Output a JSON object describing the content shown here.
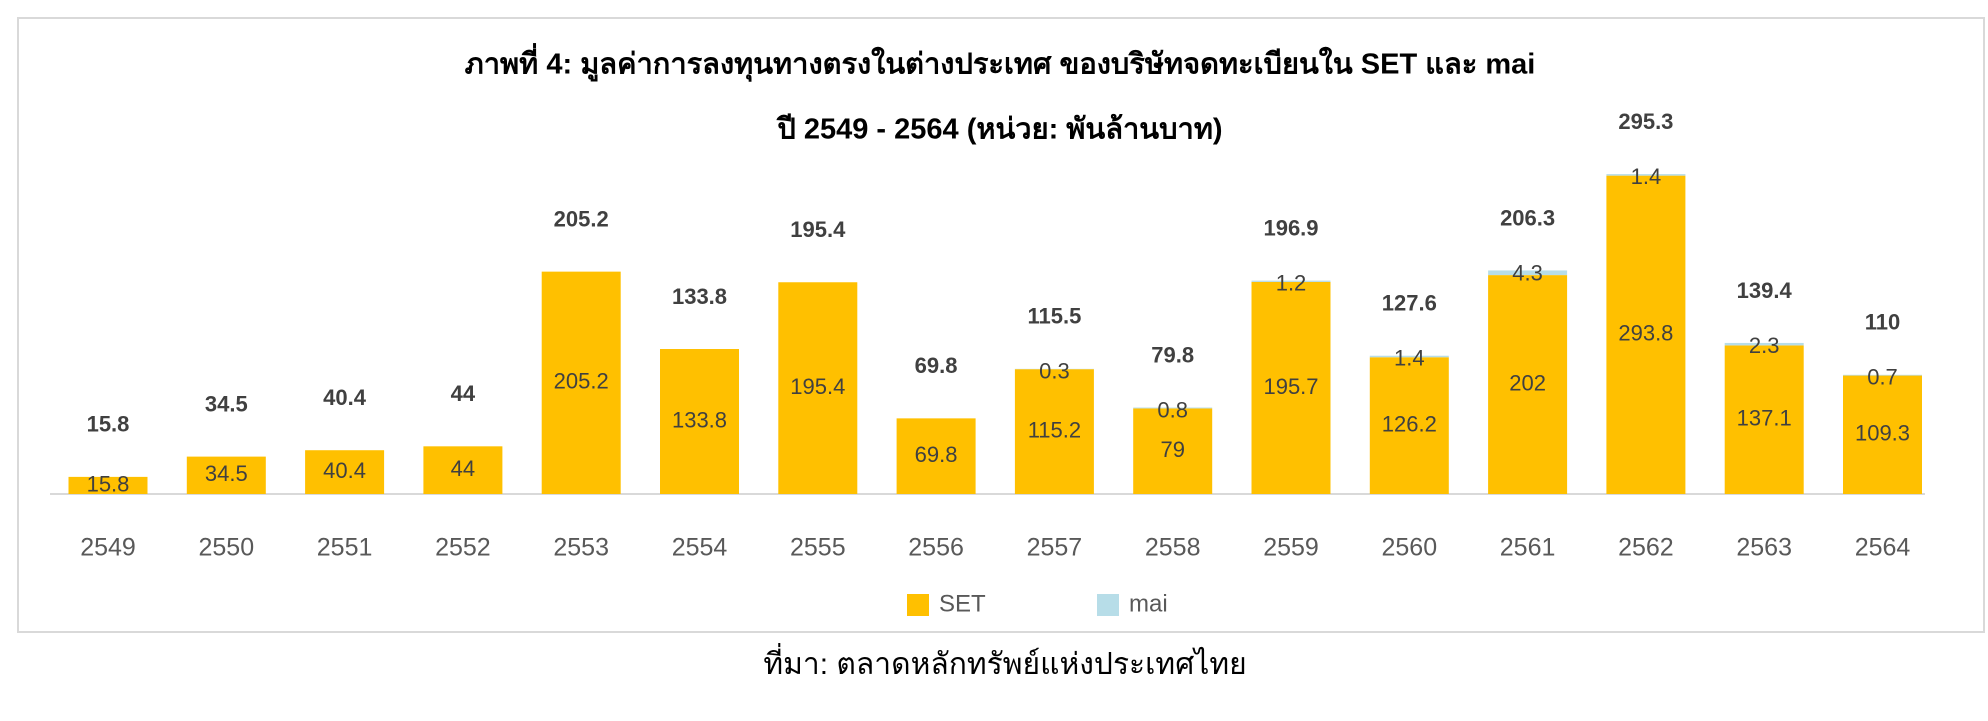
{
  "chart_data": {
    "type": "stacked_bar",
    "title": "ภาพที่ 4: มูลค่าการลงทุนทางตรงในต่างประเทศ ของบริษัทจดทะเบียนใน SET และ mai",
    "subtitle": "ปี 2549 - 2564 (หน่วย: พันล้านบาท)",
    "categories": [
      "2549",
      "2550",
      "2551",
      "2552",
      "2553",
      "2554",
      "2555",
      "2556",
      "2557",
      "2558",
      "2559",
      "2560",
      "2561",
      "2562",
      "2563",
      "2564"
    ],
    "series": [
      {
        "name": "SET",
        "color": "#FFC000",
        "values": [
          15.8,
          34.5,
          40.4,
          44.0,
          205.2,
          133.8,
          195.4,
          69.8,
          115.2,
          79.0,
          195.7,
          126.2,
          202.0,
          293.8,
          137.1,
          109.3
        ]
      },
      {
        "name": "mai",
        "color": "#B7DDE8",
        "values": [
          null,
          null,
          null,
          null,
          null,
          null,
          null,
          null,
          0.3,
          0.8,
          1.2,
          1.4,
          4.3,
          1.4,
          2.3,
          0.7
        ]
      }
    ],
    "totals": [
      15.8,
      34.5,
      40.4,
      44.0,
      205.2,
      133.8,
      195.4,
      69.8,
      115.5,
      79.8,
      196.9,
      127.6,
      206.3,
      295.3,
      139.4,
      110.0
    ],
    "legend": "bottom",
    "source": "ที่มา: ตลาดหลักทรัพย์แห่งประเทศไทย"
  }
}
